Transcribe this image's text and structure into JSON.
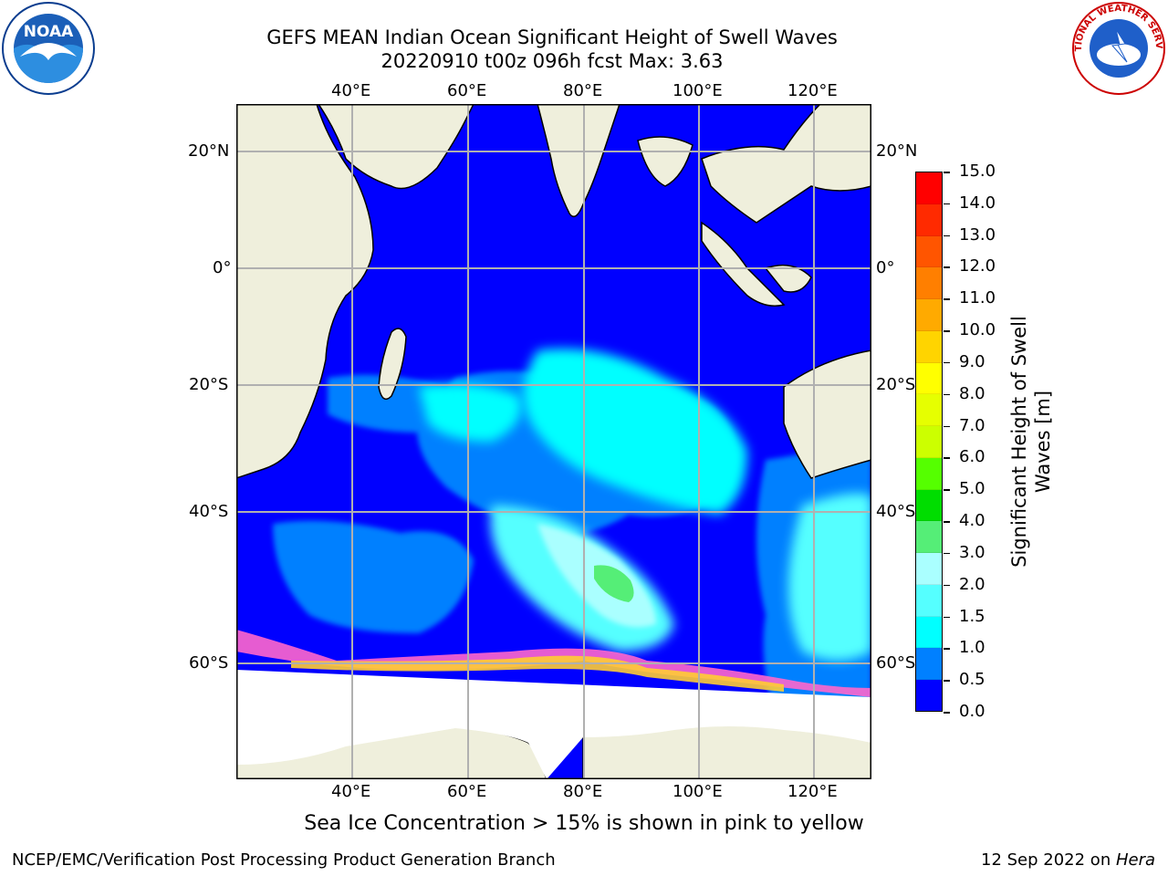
{
  "title": {
    "line1": "GEFS MEAN Indian Ocean Significant Height of Swell Waves",
    "line2": "20220910 t00z 096h fcst   Max: 3.63"
  },
  "map": {
    "lon_labels": [
      "40°E",
      "60°E",
      "80°E",
      "100°E",
      "120°E"
    ],
    "lat_labels": [
      "20°N",
      "0°",
      "20°S",
      "40°S",
      "60°S"
    ],
    "gridlines": true
  },
  "colorbar": {
    "label_line1": "Significant Height of Swell",
    "label_line2": "Waves [m]",
    "ticks": [
      "15.0",
      "14.0",
      "13.0",
      "12.0",
      "11.0",
      "10.0",
      "9.0",
      "8.0",
      "7.0",
      "6.0",
      "5.0",
      "4.0",
      "3.0",
      "2.0",
      "1.5",
      "1.0",
      "0.5",
      "0.0"
    ],
    "colors": [
      "#ff0000",
      "#ff2a00",
      "#ff5500",
      "#ff7f00",
      "#ffaa00",
      "#ffd400",
      "#ffff00",
      "#e6ff00",
      "#ccff00",
      "#55ff00",
      "#00dd00",
      "#55ee77",
      "#aaffff",
      "#55ffff",
      "#00ffff",
      "#0080ff",
      "#0000ff"
    ]
  },
  "logos": {
    "left": "NOAA",
    "right": "NATIONAL WEATHER SERVICE"
  },
  "note": "Sea Ice Concentration > 15% is shown in pink to yellow",
  "footer": {
    "left": "NCEP/EMC/Verification Post Processing Product Generation Branch",
    "right_prefix": "12 Sep 2022 on ",
    "right_italic": "Hera"
  }
}
